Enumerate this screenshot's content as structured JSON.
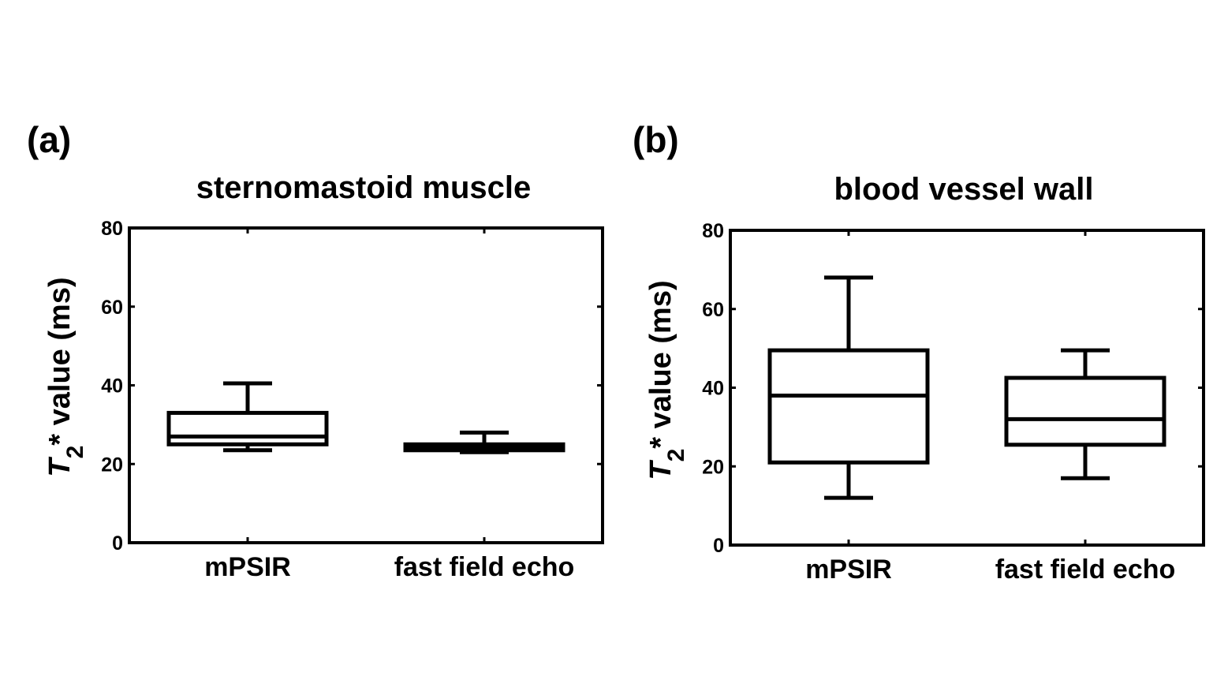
{
  "chart_data": [
    {
      "type": "box",
      "panel": "(a)",
      "title": "sternomastoid muscle",
      "xlabel": "",
      "ylabel": {
        "symbol": "T",
        "subscript": "2",
        "rest": "* value (ms)"
      },
      "ylim": [
        0,
        80
      ],
      "yticks": [
        "0",
        "20",
        "40",
        "60",
        "80"
      ],
      "categories": [
        "mPSIR",
        "fast field echo"
      ],
      "boxes": [
        {
          "name": "mPSIR",
          "whisker_low": 23.5,
          "q1": 25,
          "median": 27,
          "q3": 33,
          "whisker_high": 40.5
        },
        {
          "name": "fast field echo",
          "whisker_low": 23,
          "q1": 23.5,
          "median": 24.3,
          "q3": 25,
          "whisker_high": 28
        }
      ]
    },
    {
      "type": "box",
      "panel": "(b)",
      "title": "blood vessel wall",
      "xlabel": "",
      "ylabel": {
        "symbol": "T",
        "subscript": "2",
        "rest": "* value (ms)"
      },
      "ylim": [
        0,
        80
      ],
      "yticks": [
        "0",
        "20",
        "40",
        "60",
        "80"
      ],
      "categories": [
        "mPSIR",
        "fast field echo"
      ],
      "boxes": [
        {
          "name": "mPSIR",
          "whisker_low": 12,
          "q1": 21,
          "median": 38,
          "q3": 49.5,
          "whisker_high": 68
        },
        {
          "name": "fast field echo",
          "whisker_low": 17,
          "q1": 25.5,
          "median": 32,
          "q3": 42.5,
          "whisker_high": 49.5
        }
      ]
    }
  ]
}
